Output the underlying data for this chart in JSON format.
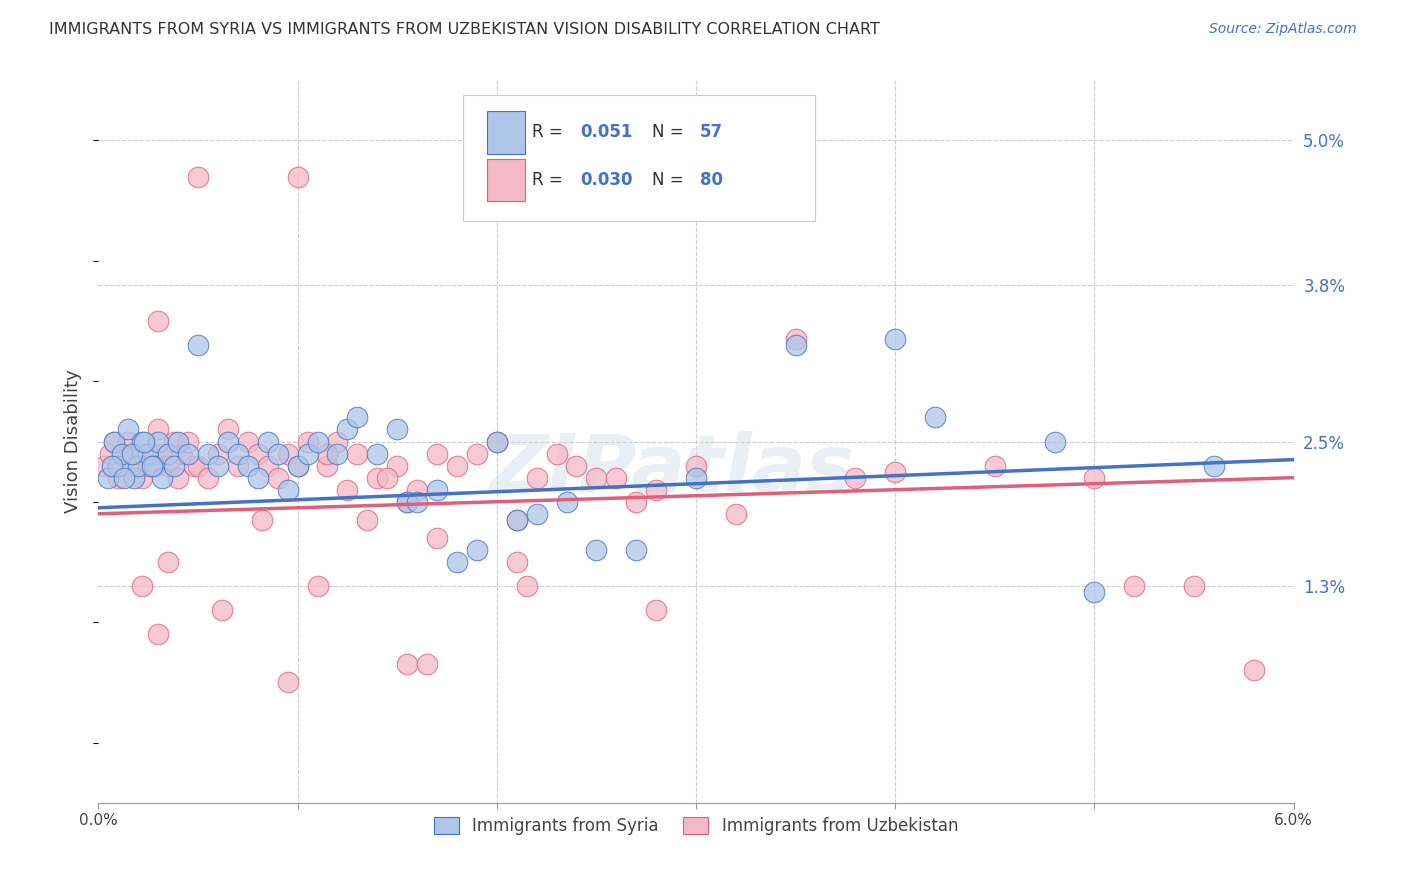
{
  "title": "IMMIGRANTS FROM SYRIA VS IMMIGRANTS FROM UZBEKISTAN VISION DISABILITY CORRELATION CHART",
  "source": "Source: ZipAtlas.com",
  "ylabel": "Vision Disability",
  "ytick_labels": [
    "5.0%",
    "3.8%",
    "2.5%",
    "1.3%"
  ],
  "ytick_values": [
    5.0,
    3.8,
    2.5,
    1.3
  ],
  "xrange": [
    0.0,
    6.0
  ],
  "yrange": [
    -0.5,
    5.5
  ],
  "color_syria": "#aec6e8",
  "color_uzbek": "#f4b8c8",
  "color_syria_line": "#4472c4",
  "color_uzbek_line": "#e0607a",
  "color_legend_text": "#4472c4",
  "watermark": "ZIPatlas",
  "syria_R": "0.051",
  "syria_N": "57",
  "uzbek_R": "0.030",
  "uzbek_N": "80",
  "syria_line_x0": 0.0,
  "syria_line_y0": 1.95,
  "syria_line_x1": 6.0,
  "syria_line_y1": 2.35,
  "uzbek_line_x0": 0.0,
  "uzbek_line_y0": 1.9,
  "uzbek_line_x1": 6.0,
  "uzbek_line_y1": 2.2,
  "syria_x": [
    0.05,
    0.08,
    0.1,
    0.12,
    0.15,
    0.18,
    0.2,
    0.22,
    0.25,
    0.28,
    0.3,
    0.32,
    0.35,
    0.38,
    0.4,
    0.45,
    0.5,
    0.55,
    0.6,
    0.65,
    0.7,
    0.75,
    0.8,
    0.85,
    0.9,
    0.95,
    1.0,
    1.05,
    1.1,
    1.2,
    1.25,
    1.3,
    1.4,
    1.5,
    1.55,
    1.6,
    1.7,
    1.8,
    1.9,
    2.0,
    2.1,
    2.2,
    2.35,
    2.5,
    2.7,
    3.0,
    3.5,
    4.0,
    4.2,
    4.8,
    5.0,
    5.6,
    0.07,
    0.13,
    0.17,
    0.23,
    0.27
  ],
  "syria_y": [
    2.2,
    2.5,
    2.3,
    2.4,
    2.6,
    2.2,
    2.3,
    2.5,
    2.4,
    2.3,
    2.5,
    2.2,
    2.4,
    2.3,
    2.5,
    2.4,
    3.3,
    2.4,
    2.3,
    2.5,
    2.4,
    2.3,
    2.2,
    2.5,
    2.4,
    2.1,
    2.3,
    2.4,
    2.5,
    2.4,
    2.6,
    2.7,
    2.4,
    2.6,
    2.0,
    2.0,
    2.1,
    1.5,
    1.6,
    2.5,
    1.85,
    1.9,
    2.0,
    1.6,
    1.6,
    2.2,
    3.3,
    3.35,
    2.7,
    2.5,
    1.25,
    2.3,
    2.3,
    2.2,
    2.4,
    2.5,
    2.3
  ],
  "uzbek_x": [
    0.03,
    0.06,
    0.08,
    0.1,
    0.12,
    0.15,
    0.18,
    0.2,
    0.22,
    0.25,
    0.28,
    0.3,
    0.32,
    0.35,
    0.38,
    0.4,
    0.42,
    0.45,
    0.48,
    0.5,
    0.55,
    0.6,
    0.65,
    0.7,
    0.75,
    0.8,
    0.85,
    0.9,
    0.95,
    1.0,
    1.05,
    1.1,
    1.15,
    1.2,
    1.3,
    1.4,
    1.5,
    1.55,
    1.6,
    1.7,
    1.8,
    1.9,
    2.0,
    2.1,
    2.2,
    2.3,
    2.4,
    2.5,
    2.7,
    2.8,
    3.0,
    3.2,
    3.5,
    3.8,
    4.0,
    4.5,
    5.0,
    5.2,
    5.5,
    5.8,
    2.1,
    2.15,
    1.45,
    0.5,
    1.0,
    1.7,
    0.3,
    0.3,
    0.35,
    0.22,
    1.25,
    0.95,
    1.35,
    1.55,
    1.65,
    2.6,
    2.8,
    1.15,
    0.82,
    0.62
  ],
  "uzbek_y": [
    2.3,
    2.4,
    2.5,
    2.2,
    2.4,
    2.5,
    2.3,
    2.4,
    2.2,
    2.3,
    2.4,
    3.5,
    2.4,
    2.3,
    2.5,
    2.2,
    2.4,
    2.5,
    2.3,
    2.3,
    2.2,
    2.4,
    2.6,
    2.3,
    2.5,
    2.4,
    2.3,
    2.2,
    2.4,
    2.3,
    2.5,
    1.3,
    2.3,
    2.5,
    2.4,
    2.2,
    2.3,
    2.0,
    2.1,
    2.4,
    2.3,
    2.4,
    2.5,
    1.85,
    2.2,
    2.4,
    2.3,
    2.2,
    2.0,
    2.1,
    2.3,
    1.9,
    3.35,
    2.2,
    2.25,
    2.3,
    2.2,
    1.3,
    1.3,
    0.6,
    1.5,
    1.3,
    2.2,
    4.7,
    4.7,
    1.7,
    2.6,
    0.9,
    1.5,
    1.3,
    2.1,
    0.5,
    1.85,
    0.65,
    0.65,
    2.2,
    1.1,
    2.4,
    1.85,
    1.1
  ]
}
